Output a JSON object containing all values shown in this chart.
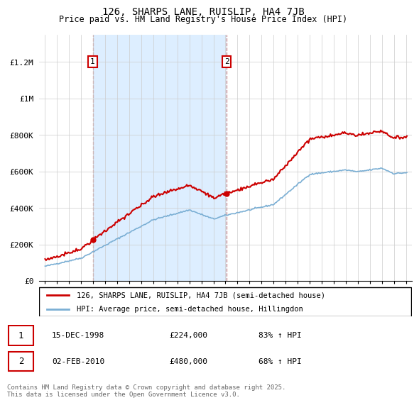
{
  "title": "126, SHARPS LANE, RUISLIP, HA4 7JB",
  "subtitle": "Price paid vs. HM Land Registry's House Price Index (HPI)",
  "legend_line1": "126, SHARPS LANE, RUISLIP, HA4 7JB (semi-detached house)",
  "legend_line2": "HPI: Average price, semi-detached house, Hillingdon",
  "footer": "Contains HM Land Registry data © Crown copyright and database right 2025.\nThis data is licensed under the Open Government Licence v3.0.",
  "red_color": "#cc0000",
  "blue_color": "#7bafd4",
  "sale1_date": "15-DEC-1998",
  "sale1_price": 224000,
  "sale1_hpi_pct": "83% ↑ HPI",
  "sale1_x": 1998.96,
  "sale2_date": "02-FEB-2010",
  "sale2_price": 480000,
  "sale2_hpi_pct": "68% ↑ HPI",
  "sale2_x": 2010.09,
  "ylim_max": 1350000,
  "yticks": [
    0,
    200000,
    400000,
    600000,
    800000,
    1000000,
    1200000
  ],
  "ytick_labels": [
    "£0",
    "£200K",
    "£400K",
    "£600K",
    "£800K",
    "£1M",
    "£1.2M"
  ],
  "xlim_min": 1994.5,
  "xlim_max": 2025.5,
  "xticks": [
    1995,
    1996,
    1997,
    1998,
    1999,
    2000,
    2001,
    2002,
    2003,
    2004,
    2005,
    2006,
    2007,
    2008,
    2009,
    2010,
    2011,
    2012,
    2013,
    2014,
    2015,
    2016,
    2017,
    2018,
    2019,
    2020,
    2021,
    2022,
    2023,
    2024,
    2025
  ],
  "shade_color": "#ddeeff",
  "bg_color": "#ffffff"
}
